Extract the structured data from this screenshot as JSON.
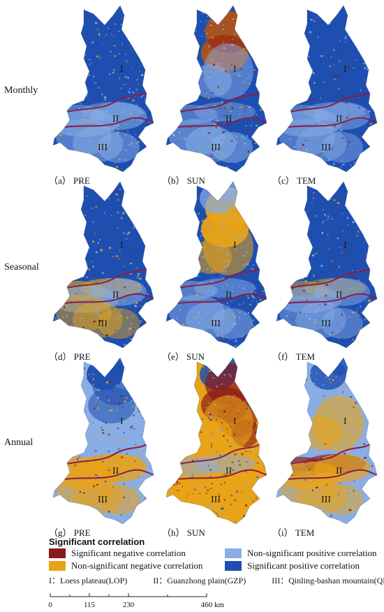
{
  "rows": [
    {
      "label": "Monthly",
      "panels": [
        {
          "caption": "（a） PRE",
          "scheme": "monthly_pre"
        },
        {
          "caption": "（b） SUN",
          "scheme": "monthly_sun"
        },
        {
          "caption": "（c） TEM",
          "scheme": "monthly_tem"
        }
      ]
    },
    {
      "label": "Seasonal",
      "panels": [
        {
          "caption": "（d） PRE",
          "scheme": "seasonal_pre"
        },
        {
          "caption": "（e） SUN",
          "scheme": "seasonal_sun"
        },
        {
          "caption": "（f） TEM",
          "scheme": "seasonal_tem"
        }
      ]
    },
    {
      "label": "Annual",
      "panels": [
        {
          "caption": "（g） PRE",
          "scheme": "annual_pre"
        },
        {
          "caption": "（h） SUN",
          "scheme": "annual_sun"
        },
        {
          "caption": "（i） TEM",
          "scheme": "annual_tem"
        }
      ]
    }
  ],
  "region_labels": {
    "r1": "I",
    "r2": "II",
    "r3": "III"
  },
  "legend": {
    "title": "Significant correlation",
    "items": [
      {
        "label": "Significant negative correlation",
        "color": "#8b1a1a"
      },
      {
        "label": "Non-significant negative correlation",
        "color": "#e8a317"
      },
      {
        "label": "Non-significant positive correlation",
        "color": "#89aee6"
      },
      {
        "label": "Significant positive correlation",
        "color": "#1e4fb0"
      }
    ]
  },
  "regions": [
    "I：Loess plateau(LOP)",
    "II：Guanzhong plain(GZP)",
    "III：Qinling-bashan mountain(QBM)"
  ],
  "scale": {
    "ticks": [
      "0",
      "115",
      "230",
      "460"
    ],
    "unit": "km"
  },
  "boundary_color": "#8b1e3f"
}
